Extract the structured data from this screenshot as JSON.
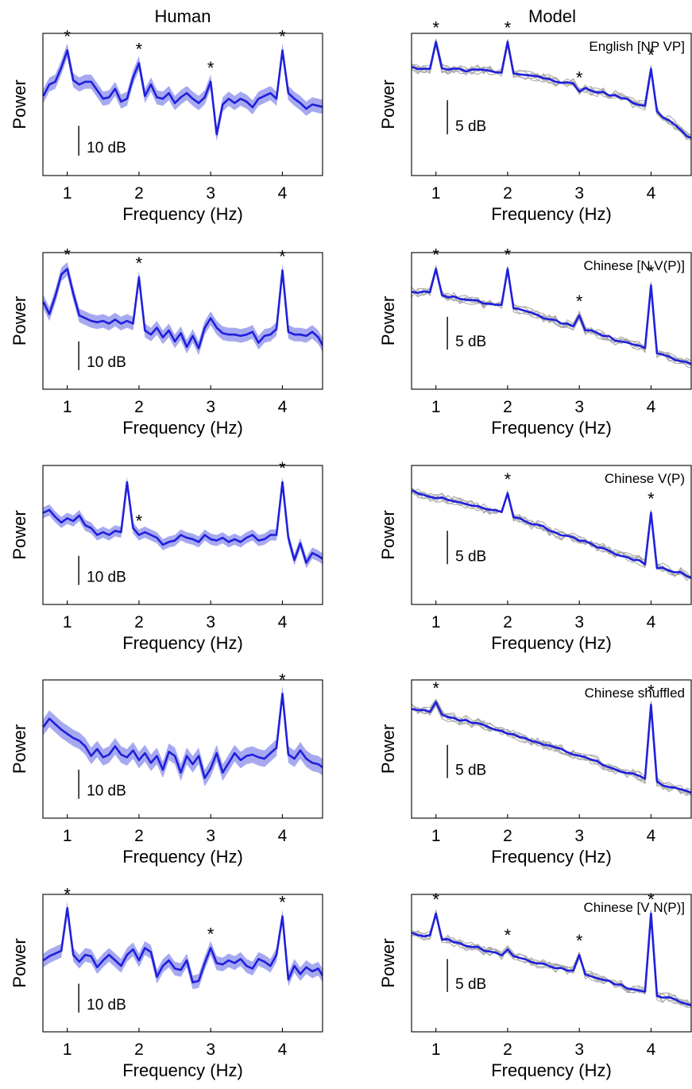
{
  "column_titles": {
    "human": "Human",
    "model": "Model"
  },
  "colors": {
    "line": "#1f1fdc",
    "band": "#a7a9f0",
    "runs": "#a9a9a9",
    "axis": "#000000"
  },
  "chart_data": [
    {
      "type": "line",
      "panel": "human-1",
      "title": "",
      "xlabel": "Frequency (Hz)",
      "ylabel": "Power",
      "xlim": [
        0.66,
        4.56
      ],
      "ylim": [
        0,
        100
      ],
      "xticks": [
        "1",
        "2",
        "3",
        "4"
      ],
      "scale_label": "10 dB",
      "scale_units": 21,
      "scale_at": [
        1.16,
        14
      ],
      "stars": [
        1,
        2,
        3,
        4
      ],
      "band_width": 5,
      "x": [
        0.667,
        0.75,
        0.833,
        0.917,
        1.0,
        1.083,
        1.167,
        1.25,
        1.333,
        1.417,
        1.5,
        1.583,
        1.667,
        1.75,
        1.833,
        1.917,
        2.0,
        2.083,
        2.167,
        2.25,
        2.333,
        2.417,
        2.5,
        2.583,
        2.667,
        2.75,
        2.833,
        2.917,
        3.0,
        3.083,
        3.167,
        3.25,
        3.333,
        3.417,
        3.5,
        3.583,
        3.667,
        3.75,
        3.833,
        3.917,
        4.0,
        4.083,
        4.167,
        4.25,
        4.333,
        4.417,
        4.5,
        4.583
      ],
      "y": [
        56,
        64,
        66,
        76,
        88,
        67,
        64,
        66,
        66,
        60,
        54,
        55,
        61,
        52,
        54,
        69,
        79,
        56,
        64,
        55,
        54,
        58,
        51,
        55,
        58,
        54,
        51,
        55,
        66,
        29,
        50,
        54,
        51,
        54,
        52,
        48,
        54,
        56,
        58,
        54,
        88,
        58,
        54,
        51,
        47,
        50,
        49,
        48
      ]
    },
    {
      "type": "line",
      "panel": "model-1",
      "title": "English [NP VP]",
      "xlabel": "Frequency (Hz)",
      "ylabel": "Power",
      "xlim": [
        0.66,
        4.56
      ],
      "ylim": [
        0,
        100
      ],
      "xticks": [
        "1",
        "2",
        "3",
        "4"
      ],
      "scale_label": "5 dB",
      "scale_units": 24,
      "scale_at": [
        1.16,
        29
      ],
      "stars": [
        1,
        2,
        3,
        4
      ],
      "band_width": 0,
      "runs": 6,
      "x": [
        0.667,
        1.0,
        2.0,
        3.0,
        4.0,
        4.583
      ],
      "y": [
        76,
        75,
        73,
        63,
        48,
        25
      ],
      "peaks": [
        [
          1.0,
          94
        ],
        [
          2.0,
          94
        ],
        [
          3.0,
          59
        ],
        [
          4.0,
          75
        ]
      ]
    },
    {
      "type": "line",
      "panel": "human-2",
      "title": "",
      "xlabel": "Frequency (Hz)",
      "ylabel": "Power",
      "xlim": [
        0.66,
        4.56
      ],
      "ylim": [
        0,
        100
      ],
      "xticks": [
        "1",
        "2",
        "3",
        "4"
      ],
      "scale_label": "10 dB",
      "scale_units": 21,
      "scale_at": [
        1.16,
        14
      ],
      "stars": [
        1,
        2,
        4
      ],
      "band_width": 5,
      "x": [
        0.667,
        0.75,
        0.833,
        0.917,
        1.0,
        1.083,
        1.167,
        1.25,
        1.333,
        1.417,
        1.5,
        1.583,
        1.667,
        1.75,
        1.833,
        1.917,
        2.0,
        2.083,
        2.167,
        2.25,
        2.333,
        2.417,
        2.5,
        2.583,
        2.667,
        2.75,
        2.833,
        2.917,
        3.0,
        3.083,
        3.167,
        3.25,
        3.333,
        3.417,
        3.5,
        3.583,
        3.667,
        3.75,
        3.833,
        3.917,
        4.0,
        4.083,
        4.167,
        4.25,
        4.333,
        4.417,
        4.5,
        4.583
      ],
      "y": [
        64,
        55,
        68,
        84,
        88,
        70,
        54,
        52,
        50,
        49,
        50,
        48,
        51,
        48,
        50,
        48,
        82,
        43,
        40,
        45,
        38,
        43,
        35,
        41,
        31,
        39,
        30,
        45,
        52,
        45,
        41,
        40,
        40,
        39,
        40,
        42,
        34,
        39,
        40,
        44,
        87,
        42,
        40,
        40,
        39,
        42,
        38,
        30
      ]
    },
    {
      "type": "line",
      "panel": "model-2",
      "title": "Chinese [N V(P)]",
      "xlabel": "Frequency (Hz)",
      "ylabel": "Power",
      "xlim": [
        0.66,
        4.56
      ],
      "ylim": [
        0,
        100
      ],
      "xticks": [
        "1",
        "2",
        "3",
        "4"
      ],
      "scale_label": "5 dB",
      "scale_units": 24,
      "scale_at": [
        1.16,
        29
      ],
      "stars": [
        1,
        2,
        3,
        4
      ],
      "band_width": 0,
      "runs": 6,
      "x": [
        0.667,
        1.0,
        2.0,
        3.0,
        4.0,
        4.583
      ],
      "y": [
        72,
        70,
        60,
        45,
        28,
        18
      ],
      "peaks": [
        [
          1.0,
          88
        ],
        [
          2.0,
          88
        ],
        [
          3.0,
          54
        ],
        [
          4.0,
          76
        ]
      ]
    },
    {
      "type": "line",
      "panel": "human-3",
      "title": "",
      "xlabel": "Frequency (Hz)",
      "ylabel": "Power",
      "xlim": [
        0.66,
        4.56
      ],
      "ylim": [
        0,
        100
      ],
      "xticks": [
        "1",
        "2",
        "3",
        "4"
      ],
      "scale_label": "10 dB",
      "scale_units": 21,
      "scale_at": [
        1.16,
        14
      ],
      "stars": [
        2,
        4
      ],
      "band_width": 4,
      "x": [
        0.667,
        0.75,
        0.833,
        0.917,
        1.0,
        1.083,
        1.167,
        1.25,
        1.333,
        1.417,
        1.5,
        1.583,
        1.667,
        1.75,
        1.833,
        1.917,
        2.0,
        2.083,
        2.167,
        2.25,
        2.333,
        2.417,
        2.5,
        2.583,
        2.667,
        2.75,
        2.833,
        2.917,
        3.0,
        3.083,
        3.167,
        3.25,
        3.333,
        3.417,
        3.5,
        3.583,
        3.667,
        3.75,
        3.833,
        3.917,
        4.0,
        4.083,
        4.167,
        4.25,
        4.333,
        4.417,
        4.5,
        4.583
      ],
      "y": [
        66,
        68,
        63,
        59,
        62,
        60,
        64,
        57,
        55,
        50,
        52,
        50,
        53,
        52,
        88,
        55,
        50,
        52,
        50,
        48,
        43,
        45,
        46,
        50,
        48,
        47,
        45,
        50,
        47,
        46,
        48,
        45,
        47,
        45,
        48,
        50,
        46,
        47,
        50,
        50,
        88,
        48,
        32,
        44,
        30,
        37,
        35,
        32
      ]
    },
    {
      "type": "line",
      "panel": "model-3",
      "title": "Chinese V(P)",
      "xlabel": "Frequency (Hz)",
      "ylabel": "Power",
      "xlim": [
        0.66,
        4.56
      ],
      "ylim": [
        0,
        100
      ],
      "xticks": [
        "1",
        "2",
        "3",
        "4"
      ],
      "scale_label": "5 dB",
      "scale_units": 24,
      "scale_at": [
        1.16,
        29
      ],
      "stars": [
        2,
        4
      ],
      "band_width": 0,
      "runs": 6,
      "x": [
        0.667,
        1.0,
        2.0,
        3.0,
        4.0,
        4.583
      ],
      "y": [
        82,
        77,
        65,
        46,
        28,
        20
      ],
      "peaks": [
        [
          2.0,
          80
        ],
        [
          4.0,
          66
        ]
      ]
    },
    {
      "type": "line",
      "panel": "human-4",
      "title": "",
      "xlabel": "Frequency (Hz)",
      "ylabel": "Power",
      "xlim": [
        0.66,
        4.56
      ],
      "ylim": [
        0,
        100
      ],
      "xticks": [
        "1",
        "2",
        "3",
        "4"
      ],
      "scale_label": "10 dB",
      "scale_units": 21,
      "scale_at": [
        1.16,
        14
      ],
      "stars": [
        4
      ],
      "band_width": 6,
      "x": [
        0.667,
        0.75,
        0.833,
        0.917,
        1.0,
        1.083,
        1.167,
        1.25,
        1.333,
        1.417,
        1.5,
        1.583,
        1.667,
        1.75,
        1.833,
        1.917,
        2.0,
        2.083,
        2.167,
        2.25,
        2.333,
        2.417,
        2.5,
        2.583,
        2.667,
        2.75,
        2.833,
        2.917,
        3.0,
        3.083,
        3.167,
        3.25,
        3.333,
        3.417,
        3.5,
        3.583,
        3.667,
        3.75,
        3.833,
        3.917,
        4.0,
        4.083,
        4.167,
        4.25,
        4.333,
        4.417,
        4.5,
        4.583
      ],
      "y": [
        66,
        72,
        68,
        64,
        61,
        58,
        56,
        52,
        45,
        50,
        44,
        46,
        52,
        46,
        44,
        49,
        42,
        47,
        40,
        45,
        35,
        48,
        45,
        33,
        45,
        39,
        45,
        29,
        36,
        47,
        33,
        40,
        47,
        42,
        45,
        46,
        44,
        43,
        47,
        51,
        90,
        46,
        43,
        49,
        43,
        40,
        39,
        36
      ]
    },
    {
      "type": "line",
      "panel": "model-4",
      "title": "Chinese shuffled",
      "xlabel": "Frequency (Hz)",
      "ylabel": "Power",
      "xlim": [
        0.66,
        4.56
      ],
      "ylim": [
        0,
        100
      ],
      "xticks": [
        "1",
        "2",
        "3",
        "4"
      ],
      "scale_label": "5 dB",
      "scale_units": 24,
      "scale_at": [
        1.16,
        29
      ],
      "stars": [
        1,
        4
      ],
      "band_width": 0,
      "runs": 6,
      "x": [
        0.667,
        1.0,
        2.0,
        3.0,
        4.0,
        4.583
      ],
      "y": [
        80,
        76,
        62,
        45,
        27,
        18
      ],
      "peaks": [
        [
          1.0,
          84
        ],
        [
          4.0,
          82
        ]
      ]
    },
    {
      "type": "line",
      "panel": "human-5",
      "title": "",
      "xlabel": "Frequency (Hz)",
      "ylabel": "Power",
      "xlim": [
        0.66,
        4.56
      ],
      "ylim": [
        0,
        100
      ],
      "xticks": [
        "1",
        "2",
        "3",
        "4"
      ],
      "scale_label": "10 dB",
      "scale_units": 21,
      "scale_at": [
        1.16,
        14
      ],
      "stars": [
        1,
        3,
        4
      ],
      "band_width": 5,
      "x": [
        0.667,
        0.75,
        0.833,
        0.917,
        1.0,
        1.083,
        1.167,
        1.25,
        1.333,
        1.417,
        1.5,
        1.583,
        1.667,
        1.75,
        1.833,
        1.917,
        2.0,
        2.083,
        2.167,
        2.25,
        2.333,
        2.417,
        2.5,
        2.583,
        2.667,
        2.75,
        2.833,
        2.917,
        3.0,
        3.083,
        3.167,
        3.25,
        3.333,
        3.417,
        3.5,
        3.583,
        3.667,
        3.75,
        3.833,
        3.917,
        4.0,
        4.083,
        4.167,
        4.25,
        4.333,
        4.417,
        4.5,
        4.583
      ],
      "y": [
        52,
        55,
        57,
        59,
        90,
        56,
        51,
        56,
        55,
        47,
        52,
        56,
        52,
        48,
        56,
        60,
        52,
        61,
        58,
        40,
        48,
        52,
        46,
        45,
        52,
        36,
        37,
        50,
        61,
        50,
        49,
        52,
        50,
        53,
        48,
        46,
        53,
        51,
        48,
        56,
        84,
        38,
        48,
        42,
        47,
        44,
        46,
        39
      ]
    },
    {
      "type": "line",
      "panel": "model-5",
      "title": "Chinese [V N(P)]",
      "xlabel": "Frequency (Hz)",
      "ylabel": "Power",
      "xlim": [
        0.66,
        4.56
      ],
      "ylim": [
        0,
        100
      ],
      "xticks": [
        "1",
        "2",
        "3",
        "4"
      ],
      "scale_label": "5 dB",
      "scale_units": 24,
      "scale_at": [
        1.16,
        29
      ],
      "stars": [
        1,
        2,
        3,
        4
      ],
      "band_width": 0,
      "runs": 6,
      "x": [
        0.667,
        1.0,
        2.0,
        3.0,
        4.0,
        4.583
      ],
      "y": [
        72,
        69,
        55,
        43,
        27,
        20
      ],
      "peaks": [
        [
          1.0,
          86
        ],
        [
          2.0,
          60
        ],
        [
          3.0,
          56
        ],
        [
          4.0,
          86
        ]
      ]
    }
  ]
}
